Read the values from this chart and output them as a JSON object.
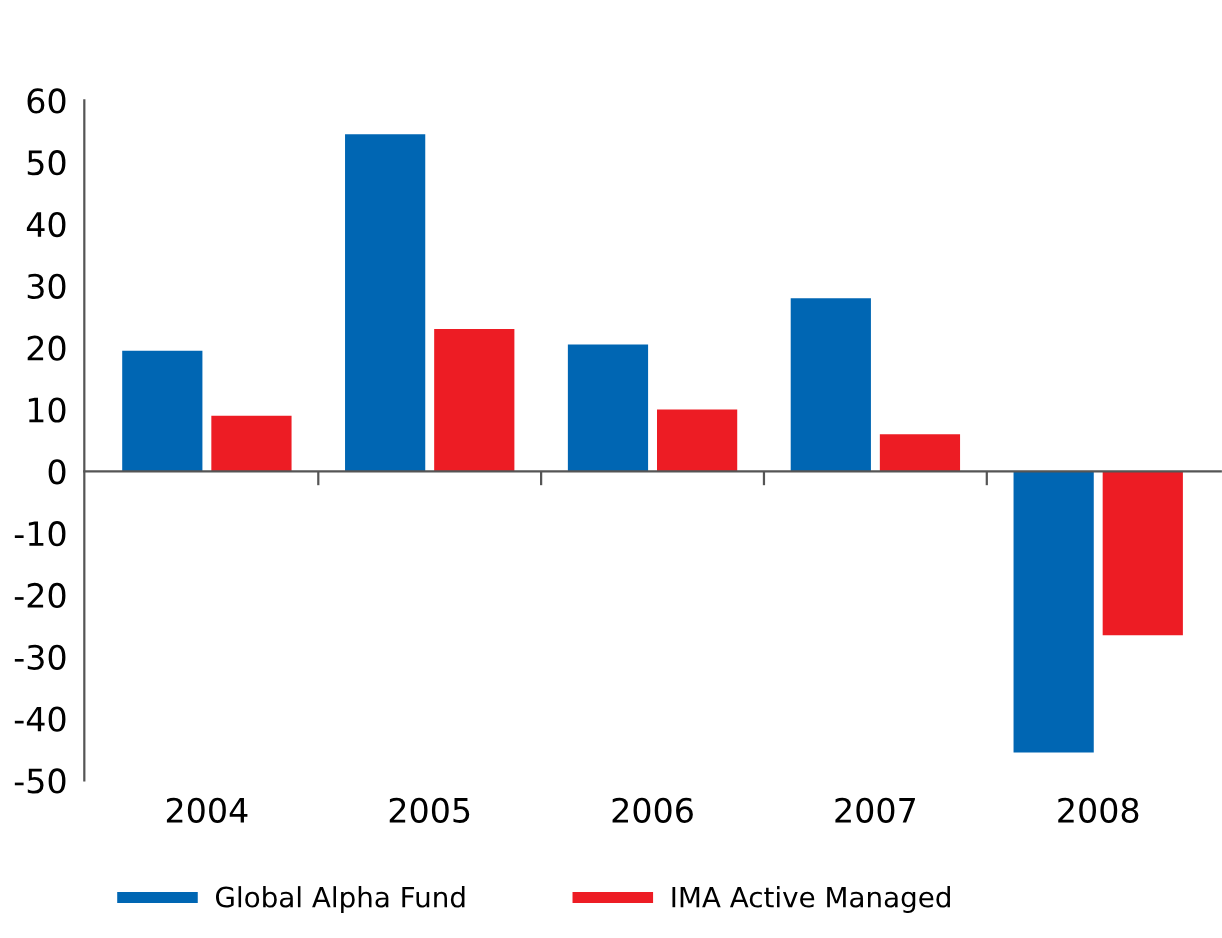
{
  "chart_data": {
    "type": "bar",
    "categories": [
      "2004",
      "2005",
      "2006",
      "2007",
      "2008"
    ],
    "series": [
      {
        "name": "Global Alpha Fund",
        "color": "#0066b3",
        "values": [
          19.5,
          54.5,
          20.5,
          28,
          -45.5
        ]
      },
      {
        "name": "IMA Active Managed",
        "color": "#ed1c24",
        "values": [
          9,
          23,
          10,
          6,
          -26.5
        ]
      }
    ],
    "ylim": [
      -50,
      60
    ],
    "yticks": [
      -50,
      -40,
      -30,
      -20,
      -10,
      0,
      10,
      20,
      30,
      40,
      50,
      60
    ],
    "legend": "bottom"
  }
}
